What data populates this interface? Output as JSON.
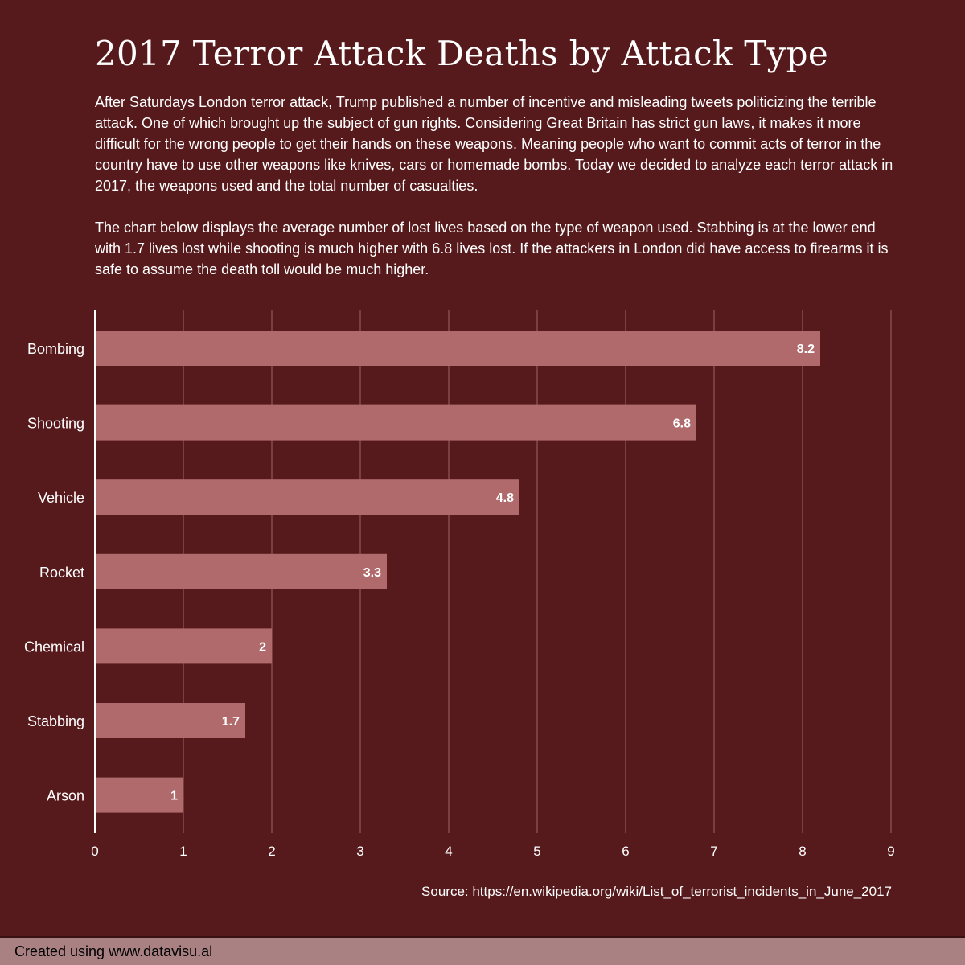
{
  "title": "2017 Terror Attack Deaths by Attack Type",
  "intro": {
    "paragraph_1": "After Saturdays London terror attack, Trump published a number of incentive and misleading tweets politicizing the terrible attack. One of which brought up the subject of gun rights. Considering Great Britain has strict gun laws, it makes it more difficult for the wrong people to get their hands on these weapons. Meaning people who want to commit acts of terror in the country have to use other weapons like knives, cars or homemade bombs. Today we decided to analyze each terror attack in 2017, the weapons used and the total number of casualties.",
    "paragraph_2": "The chart below displays the average number of lost lives based on the type of weapon used. Stabbing is at the lower end with 1.7 lives lost while shooting is much higher with 6.8 lives lost. If the attackers in London did have access to firearms it is safe to assume the death toll would be much higher."
  },
  "chart_data": {
    "type": "bar",
    "orientation": "horizontal",
    "categories": [
      "Bombing",
      "Shooting",
      "Vehicle",
      "Rocket",
      "Chemical",
      "Stabbing",
      "Arson"
    ],
    "values": [
      8.2,
      6.8,
      4.8,
      3.3,
      2,
      1.7,
      1
    ],
    "data_labels": [
      "8.2",
      "6.8",
      "4.8",
      "3.3",
      "2",
      "1.7",
      "1"
    ],
    "xlim": [
      0,
      9
    ],
    "x_ticks": [
      "0",
      "1",
      "2",
      "3",
      "4",
      "5",
      "6",
      "7",
      "8",
      "9"
    ],
    "grid": "vertical",
    "colors": {
      "background": "#561a1c",
      "bar": "#b06a6c",
      "grid": "#9c6466",
      "text": "#ffffff"
    }
  },
  "source": "Source: https://en.wikipedia.org/wiki/List_of_terrorist_incidents_in_June_2017",
  "footer": {
    "label": "Created using www.datavisu.al"
  }
}
